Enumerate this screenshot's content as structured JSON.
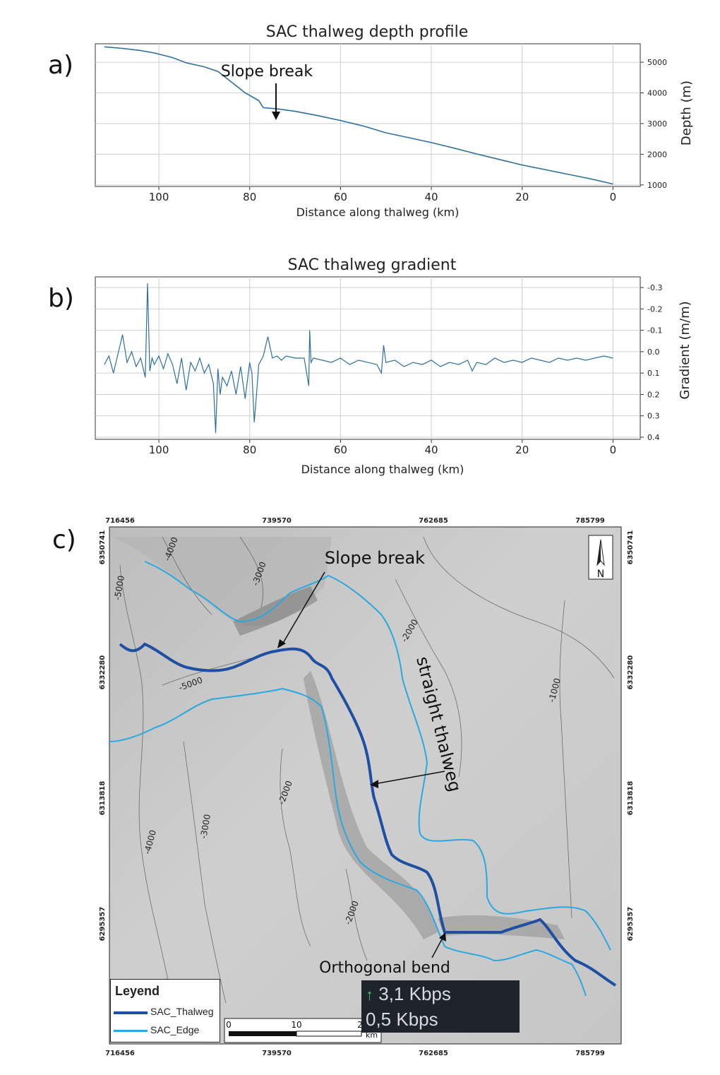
{
  "panels": {
    "a_label": "a)",
    "b_label": "b)",
    "c_label": "c)"
  },
  "chart_data": [
    {
      "type": "line",
      "title": "SAC thalweg depth profile",
      "xlabel": "Distance along thalweg (km)",
      "ylabel": "Depth (m)",
      "x_ticks": [
        100,
        80,
        60,
        40,
        20,
        0
      ],
      "y_ticks": [
        1000,
        2000,
        3000,
        4000,
        5000
      ],
      "xlim": [
        114,
        -6
      ],
      "ylim": [
        5600,
        950
      ],
      "y_axis_side": "right",
      "grid": true,
      "annotation": {
        "text": "Slope break",
        "x": 77,
        "y": 3500
      },
      "series": [
        {
          "color": "#2e6f9e",
          "x": [
            112,
            108,
            104,
            101,
            97,
            94,
            90,
            87,
            84,
            81,
            78,
            77,
            74,
            70,
            65,
            60,
            55,
            50,
            45,
            40,
            35,
            30,
            25,
            20,
            15,
            10,
            5,
            0
          ],
          "y": [
            5500,
            5450,
            5380,
            5300,
            5150,
            4980,
            4850,
            4700,
            4350,
            4000,
            3750,
            3520,
            3480,
            3400,
            3260,
            3100,
            2920,
            2700,
            2540,
            2380,
            2200,
            2010,
            1830,
            1650,
            1500,
            1350,
            1200,
            1030
          ]
        }
      ]
    },
    {
      "type": "line",
      "title": "SAC thalweg gradient",
      "xlabel": "Distance along thalweg (km)",
      "ylabel": "Gradient (m/m)",
      "x_ticks": [
        100,
        80,
        60,
        40,
        20,
        0
      ],
      "y_ticks": [
        0.4,
        0.3,
        0.2,
        0.1,
        0.0,
        -0.1,
        -0.2,
        -0.3
      ],
      "xlim": [
        114,
        -6
      ],
      "ylim": [
        -0.35,
        0.41
      ],
      "y_axis_side": "right",
      "grid": true,
      "series": [
        {
          "color": "#2e6f9e",
          "x": [
            112,
            111,
            110,
            109,
            108,
            107,
            106,
            105,
            104,
            103,
            102.5,
            102,
            101.5,
            101,
            100,
            99,
            98,
            97,
            96,
            95,
            94,
            93,
            92,
            91,
            90,
            89,
            88,
            87.5,
            87,
            86.5,
            86,
            85,
            84,
            83,
            82,
            81,
            80,
            79.5,
            79,
            78.5,
            78,
            77,
            76,
            75,
            74,
            73,
            72,
            70,
            68,
            67,
            66.8,
            66.5,
            66,
            64,
            62,
            60,
            58,
            56,
            54,
            52,
            51,
            50.5,
            50,
            48,
            46,
            44,
            42,
            40,
            38,
            36,
            34,
            32,
            31,
            30,
            28,
            26,
            24,
            22,
            20,
            18,
            16,
            14,
            12,
            10,
            8,
            6,
            4,
            2,
            0
          ],
          "y": [
            0.06,
            0.02,
            0.1,
            0.01,
            -0.08,
            0.05,
            0.0,
            0.07,
            0.03,
            0.12,
            -0.32,
            0.09,
            0.03,
            0.06,
            0.02,
            0.08,
            0.01,
            0.06,
            0.15,
            0.03,
            0.18,
            0.05,
            0.09,
            0.03,
            0.1,
            0.06,
            0.15,
            0.38,
            0.08,
            0.2,
            0.12,
            0.16,
            0.09,
            0.2,
            0.07,
            0.22,
            0.05,
            0.1,
            0.33,
            0.2,
            0.06,
            0.02,
            -0.07,
            0.03,
            0.02,
            0.04,
            0.02,
            0.03,
            0.03,
            0.16,
            -0.1,
            0.05,
            0.03,
            0.04,
            0.05,
            0.03,
            0.06,
            0.04,
            0.05,
            0.06,
            0.1,
            -0.03,
            0.05,
            0.04,
            0.07,
            0.05,
            0.06,
            0.04,
            0.07,
            0.05,
            0.06,
            0.04,
            0.09,
            0.05,
            0.06,
            0.03,
            0.05,
            0.04,
            0.05,
            0.03,
            0.04,
            0.05,
            0.03,
            0.04,
            0.03,
            0.04,
            0.03,
            0.02,
            0.03
          ]
        }
      ]
    }
  ],
  "map": {
    "top_ticks": [
      "716456",
      "739570",
      "762685",
      "785799"
    ],
    "bottom_ticks": [
      "716456",
      "739570",
      "762685",
      "785799"
    ],
    "left_ticks": [
      "6350741",
      "6332280",
      "6313818",
      "6295357"
    ],
    "right_ticks": [
      "6350741",
      "6332280",
      "6313818",
      "6295357"
    ],
    "contour_labels": [
      "-4000",
      "-3000",
      "-5000",
      "-5000",
      "-2000",
      "-1000",
      "-2000",
      "-3000",
      "-4000",
      "-2000"
    ],
    "annotations": {
      "slope_break": "Slope break",
      "straight_thalweg": "straight thalweg",
      "orthogonal_bend": "Orthogonal bend"
    },
    "north_label": "N",
    "legend": {
      "title": "Leyend",
      "items": [
        {
          "label": "SAC_Thalweg",
          "color": "#1f4fa3"
        },
        {
          "label": "SAC_Edge",
          "color": "#29a9e0"
        }
      ]
    },
    "scalebar": {
      "ticks": [
        "0",
        "10",
        "2"
      ],
      "unit": "km"
    },
    "colors": {
      "thalweg": "#1f4fa3",
      "edge": "#29a9e0",
      "relief": "#c9c9c9"
    }
  },
  "overlay": {
    "upload": "3,1 Kbps",
    "download": "0,5 Kbps"
  }
}
